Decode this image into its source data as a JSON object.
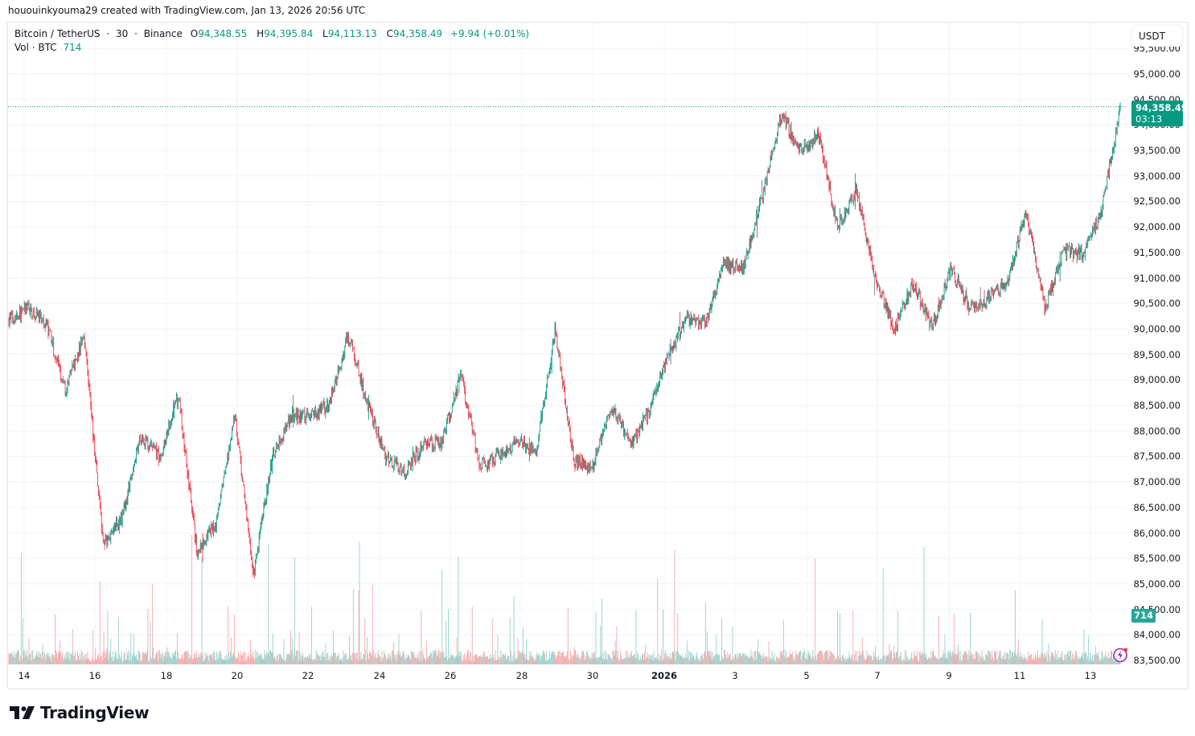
{
  "caption": "hououinkyouma29 created with TradingView.com, Jan 13, 2026 20:56 UTC",
  "legend": {
    "symbol": "Bitcoin / TetherUS",
    "interval": "30",
    "exchange": "Binance",
    "sep": "·",
    "open_label": "O",
    "open": "94,348.55",
    "high_label": "H",
    "high": "94,395.84",
    "low_label": "L",
    "low": "94,113.13",
    "close_label": "C",
    "close": "94,358.49",
    "change": "+9.94 (+0.01%)",
    "vol_label": "Vol · BTC",
    "vol_value": "714"
  },
  "price_axis": {
    "currency": "USDT",
    "last_price": "94,358.49",
    "countdown": "03:13",
    "volume_badge": "714"
  },
  "brand": {
    "name": "TradingView"
  },
  "colors": {
    "up": "#089981",
    "down": "#f23645",
    "neutral": "#787b86",
    "vol_up": "#92d2cc",
    "vol_down": "#f7a9a7",
    "grid": "#f0f3fa",
    "last_price_line": "#089981"
  },
  "chart_data": {
    "type": "candlestick",
    "title": "Bitcoin / TetherUS · 30 · Binance",
    "interval": "30m",
    "xlabel": "",
    "ylabel": "USDT",
    "ylim": [
      83300,
      95700
    ],
    "y_ticks": [
      83500,
      84000,
      84500,
      85000,
      85500,
      86000,
      86500,
      87000,
      87500,
      88000,
      88500,
      89000,
      89500,
      90000,
      90500,
      91000,
      91500,
      92000,
      92500,
      93000,
      93500,
      94000,
      94500,
      95000,
      95500
    ],
    "y_tick_labels": [
      "83,500.00",
      "84,000.00",
      "84,500.00",
      "85,000.00",
      "85,500.00",
      "86,000.00",
      "86,500.00",
      "87,000.00",
      "87,500.00",
      "88,000.00",
      "88,500.00",
      "89,000.00",
      "89,500.00",
      "90,000.00",
      "90,500.00",
      "91,000.00",
      "91,500.00",
      "92,000.00",
      "92,500.00",
      "93,000.00",
      "93,500.00",
      "94,000.00",
      "94,500.00",
      "95,000.00",
      "95,500.00"
    ],
    "x_ticks": [
      {
        "label": "14",
        "x": 30
      },
      {
        "label": "16",
        "x": 118
      },
      {
        "label": "18",
        "x": 207
      },
      {
        "label": "20",
        "x": 295
      },
      {
        "label": "22",
        "x": 383
      },
      {
        "label": "24",
        "x": 472
      },
      {
        "label": "26",
        "x": 560
      },
      {
        "label": "28",
        "x": 649
      },
      {
        "label": "30",
        "x": 737
      },
      {
        "label": "2026",
        "x": 826,
        "bold": true
      },
      {
        "label": "3",
        "x": 914
      },
      {
        "label": "5",
        "x": 1003
      },
      {
        "label": "7",
        "x": 1091
      },
      {
        "label": "9",
        "x": 1180
      },
      {
        "label": "11",
        "x": 1268
      },
      {
        "label": "13",
        "x": 1356
      }
    ],
    "last": {
      "open": 94348.55,
      "high": 94395.84,
      "low": 94113.13,
      "close": 94358.49,
      "volume": 714
    },
    "price_path_approx": [
      {
        "date": "Dec 13",
        "price": 90200
      },
      {
        "date": "Dec 13 12h",
        "price": 90400
      },
      {
        "date": "Dec 14",
        "price": 90100
      },
      {
        "date": "Dec 14 12h",
        "price": 88800
      },
      {
        "date": "Dec 15",
        "price": 89900
      },
      {
        "date": "Dec 15 12h",
        "price": 85800
      },
      {
        "date": "Dec 16",
        "price": 86300
      },
      {
        "date": "Dec 16 12h",
        "price": 87900
      },
      {
        "date": "Dec 17",
        "price": 87500
      },
      {
        "date": "Dec 17 6h",
        "price": 88700
      },
      {
        "date": "Dec 17 12h",
        "price": 85600
      },
      {
        "date": "Dec 18",
        "price": 86200
      },
      {
        "date": "Dec 18 12h",
        "price": 88300
      },
      {
        "date": "Dec 19",
        "price": 85200
      },
      {
        "date": "Dec 19 12h",
        "price": 87500
      },
      {
        "date": "Dec 20",
        "price": 88300
      },
      {
        "date": "Dec 21",
        "price": 88300
      },
      {
        "date": "Dec 22",
        "price": 88500
      },
      {
        "date": "Dec 22 12h",
        "price": 89900
      },
      {
        "date": "Dec 23",
        "price": 88600
      },
      {
        "date": "Dec 23 12h",
        "price": 87500
      },
      {
        "date": "Dec 24",
        "price": 87200
      },
      {
        "date": "Dec 25",
        "price": 87700
      },
      {
        "date": "Dec 26",
        "price": 87800
      },
      {
        "date": "Dec 26 6h",
        "price": 89100
      },
      {
        "date": "Dec 26 18h",
        "price": 87300
      },
      {
        "date": "Dec 27",
        "price": 87500
      },
      {
        "date": "Dec 28",
        "price": 87800
      },
      {
        "date": "Dec 29",
        "price": 87600
      },
      {
        "date": "Dec 29 6h",
        "price": 90000
      },
      {
        "date": "Dec 29 18h",
        "price": 87400
      },
      {
        "date": "Dec 30",
        "price": 87300
      },
      {
        "date": "Dec 31",
        "price": 88500
      },
      {
        "date": "Jan 1",
        "price": 87700
      },
      {
        "date": "Jan 2",
        "price": 88400
      },
      {
        "date": "Jan 3",
        "price": 89500
      },
      {
        "date": "Jan 3 12h",
        "price": 90200
      },
      {
        "date": "Jan 4",
        "price": 90100
      },
      {
        "date": "Jan 4 12h",
        "price": 91300
      },
      {
        "date": "Jan 5",
        "price": 91200
      },
      {
        "date": "Jan 5 6h",
        "price": 92600
      },
      {
        "date": "Jan 6",
        "price": 94200
      },
      {
        "date": "Jan 6 12h",
        "price": 93500
      },
      {
        "date": "Jan 6 18h",
        "price": 93800
      },
      {
        "date": "Jan 7",
        "price": 92000
      },
      {
        "date": "Jan 7 12h",
        "price": 92700
      },
      {
        "date": "Jan 8",
        "price": 91000
      },
      {
        "date": "Jan 8 12h",
        "price": 90000
      },
      {
        "date": "Jan 9",
        "price": 90900
      },
      {
        "date": "Jan 9 12h",
        "price": 90000
      },
      {
        "date": "Jan 10",
        "price": 91200
      },
      {
        "date": "Jan 10 6h",
        "price": 90400
      },
      {
        "date": "Jan 11",
        "price": 90600
      },
      {
        "date": "Jan 12",
        "price": 90900
      },
      {
        "date": "Jan 12 6h",
        "price": 92300
      },
      {
        "date": "Jan 12 12h",
        "price": 90400
      },
      {
        "date": "Jan 12 18h",
        "price": 91500
      },
      {
        "date": "Jan 13",
        "price": 91500
      },
      {
        "date": "Jan 13 12h",
        "price": 92300
      },
      {
        "date": "Jan 13 20h",
        "price": 94358
      }
    ]
  }
}
